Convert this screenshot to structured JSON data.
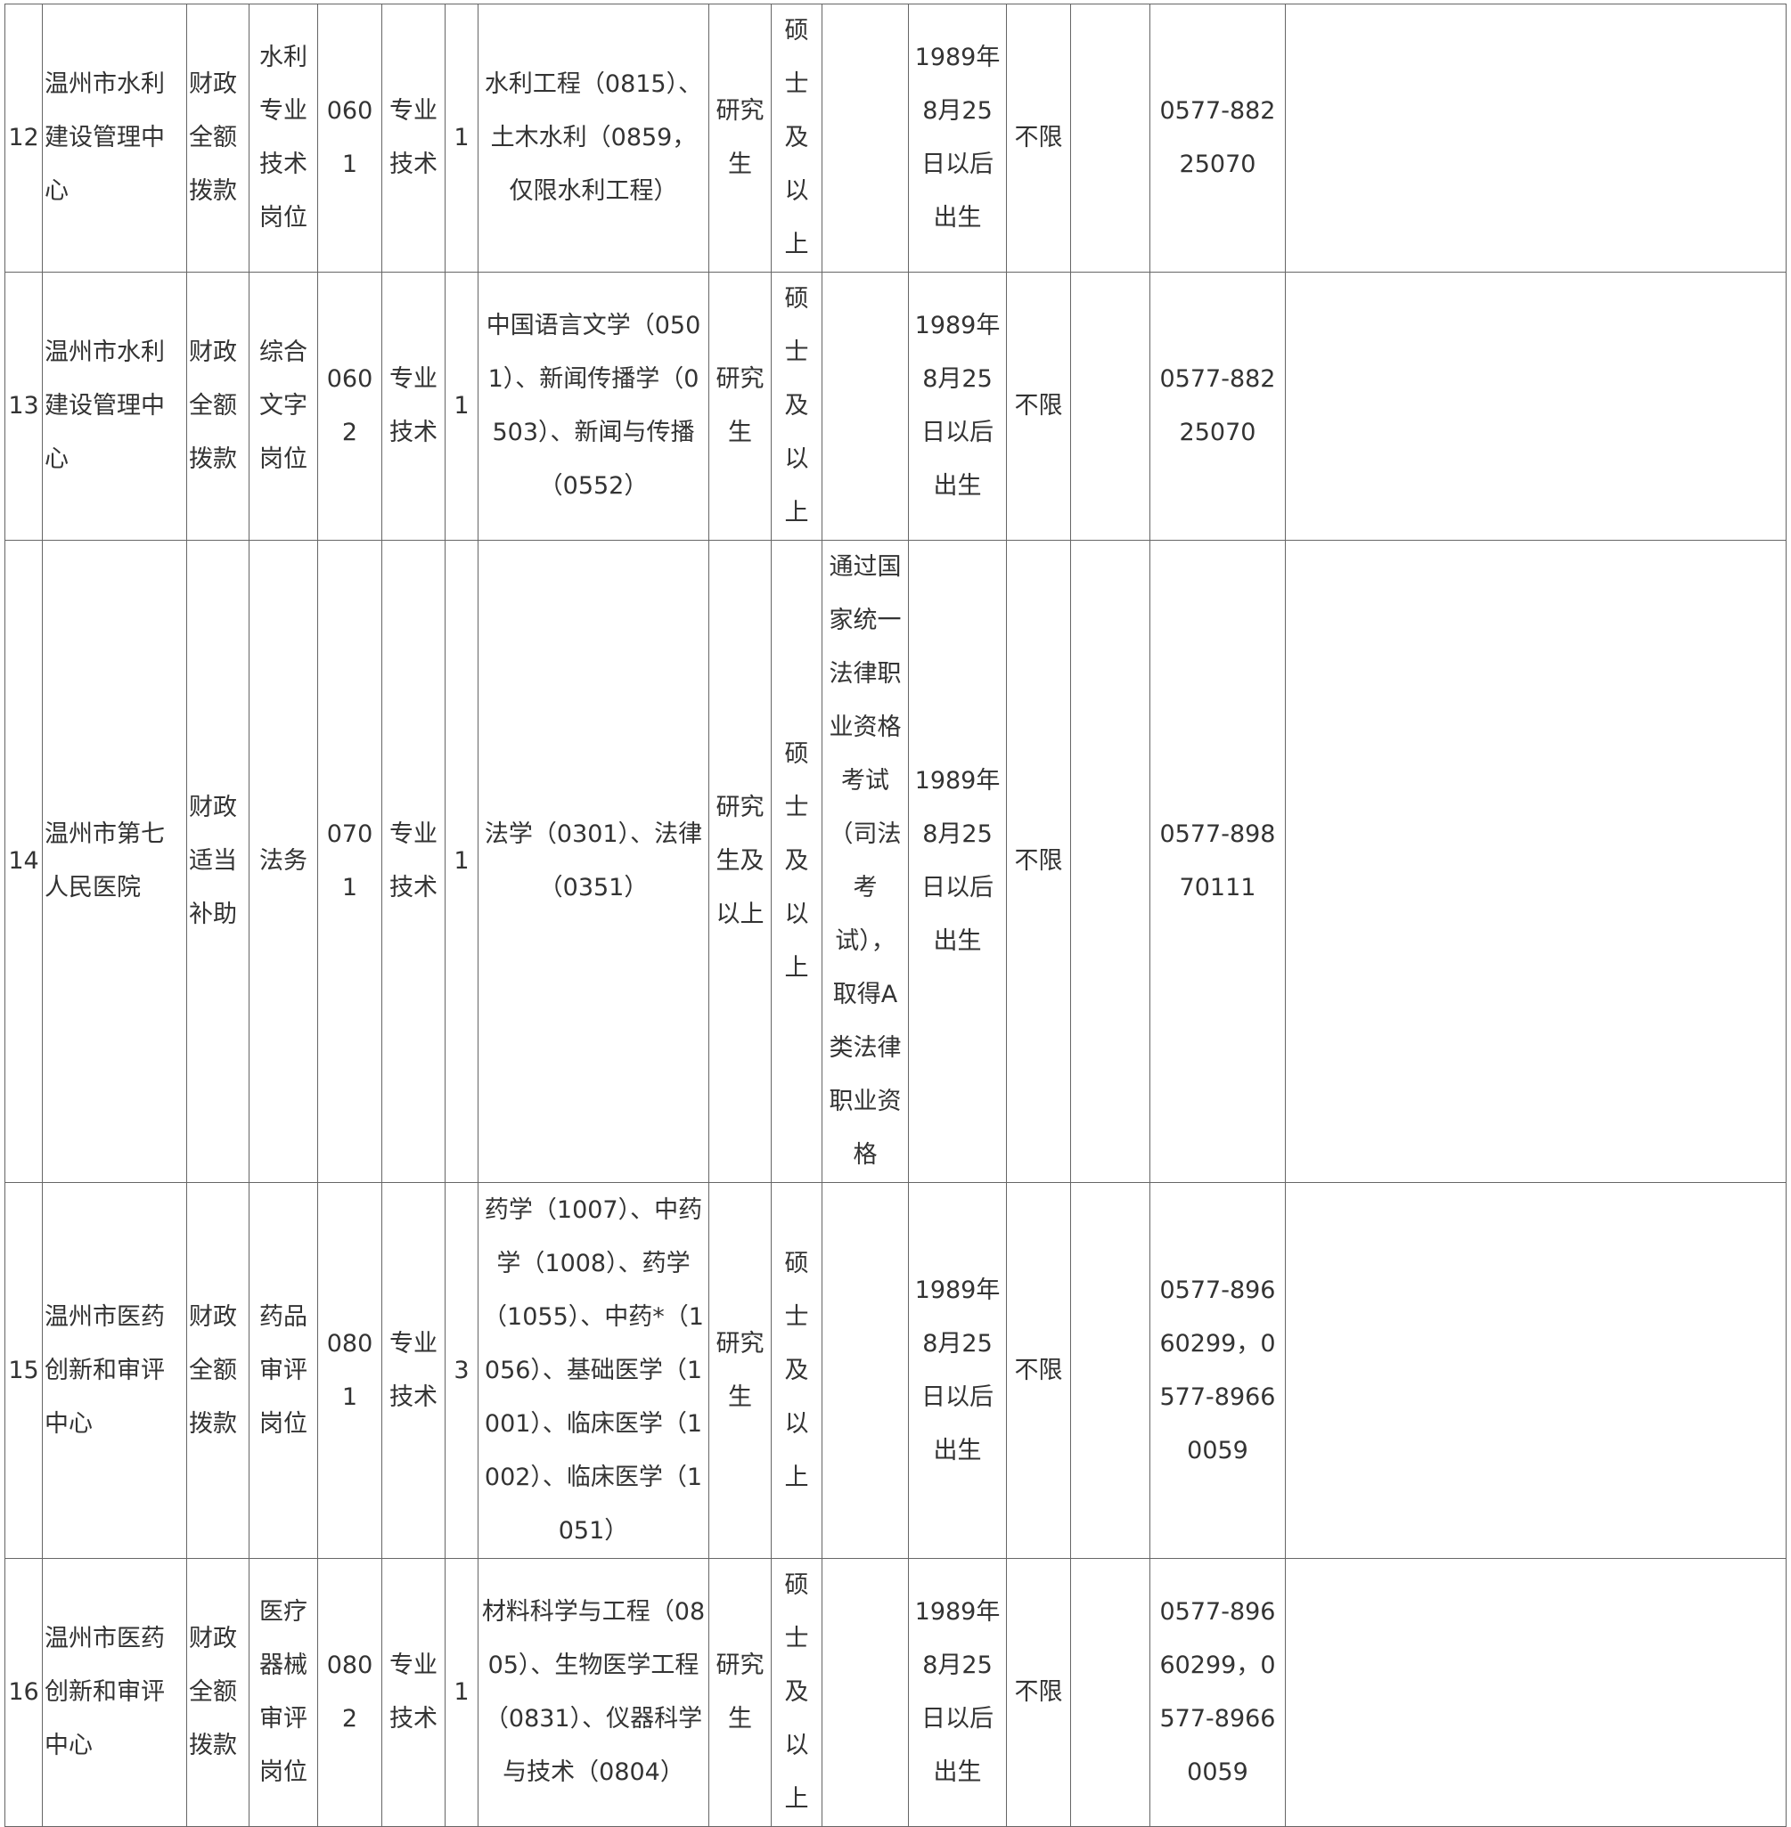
{
  "rows": [
    {
      "no": "12",
      "unit": "温州市水利建设管理中心",
      "funding": "财政全额拨款",
      "position": "水利专业技术岗位",
      "code": "0601",
      "type": "专业技术",
      "count": "1",
      "major": "水利工程（0815）、土木水利（0859，仅限水利工程）",
      "education": "研究生",
      "degree": "硕士及以上",
      "other": "",
      "age": "1989年8月25日以后出生",
      "gender": "不限",
      "extra": "",
      "phone": "0577-88225070",
      "note": ""
    },
    {
      "no": "13",
      "unit": "温州市水利建设管理中心",
      "funding": "财政全额拨款",
      "position": "综合文字岗位",
      "code": "0602",
      "type": "专业技术",
      "count": "1",
      "major": "中国语言文学（0501）、新闻传播学（0503）、新闻与传播（0552）",
      "education": "研究生",
      "degree": "硕士及以上",
      "other": "",
      "age": "1989年8月25日以后出生",
      "gender": "不限",
      "extra": "",
      "phone": "0577-88225070",
      "note": ""
    },
    {
      "no": "14",
      "unit": "温州市第七人民医院",
      "funding": "财政适当补助",
      "position": "法务",
      "code": "0701",
      "type": "专业技术",
      "count": "1",
      "major": "法学（0301）、法律（0351）",
      "education": "研究生及以上",
      "degree": "硕士及以上",
      "other": "通过国家统一法律职业资格考试（司法考试），取得A类法律职业资格",
      "age": "1989年8月25日以后出生",
      "gender": "不限",
      "extra": "",
      "phone": "0577-89870111",
      "note": ""
    },
    {
      "no": "15",
      "unit": "温州市医药创新和审评中心",
      "funding": "财政全额拨款",
      "position": "药品审评岗位",
      "code": "0801",
      "type": "专业技术",
      "count": "3",
      "major": "药学（1007）、中药学（1008）、药学（1055）、中药*（1056）、基础医学（1001）、临床医学（1002）、临床医学（1051）",
      "education": "研究生",
      "degree": "硕士及以上",
      "other": "",
      "age": "1989年8月25日以后出生",
      "gender": "不限",
      "extra": "",
      "phone": "0577-89660299，0577-89660059",
      "note": ""
    },
    {
      "no": "16",
      "unit": "温州市医药创新和审评中心",
      "funding": "财政全额拨款",
      "position": "医疗器械审评岗位",
      "code": "0802",
      "type": "专业技术",
      "count": "1",
      "major": "材料科学与工程（0805）、生物医学工程（0831）、仪器科学与技术（0804）",
      "education": "研究生",
      "degree": "硕士及以上",
      "other": "",
      "age": "1989年8月25日以后出生",
      "gender": "不限",
      "extra": "",
      "phone": "0577-89660299，0577-89660059",
      "note": ""
    }
  ]
}
